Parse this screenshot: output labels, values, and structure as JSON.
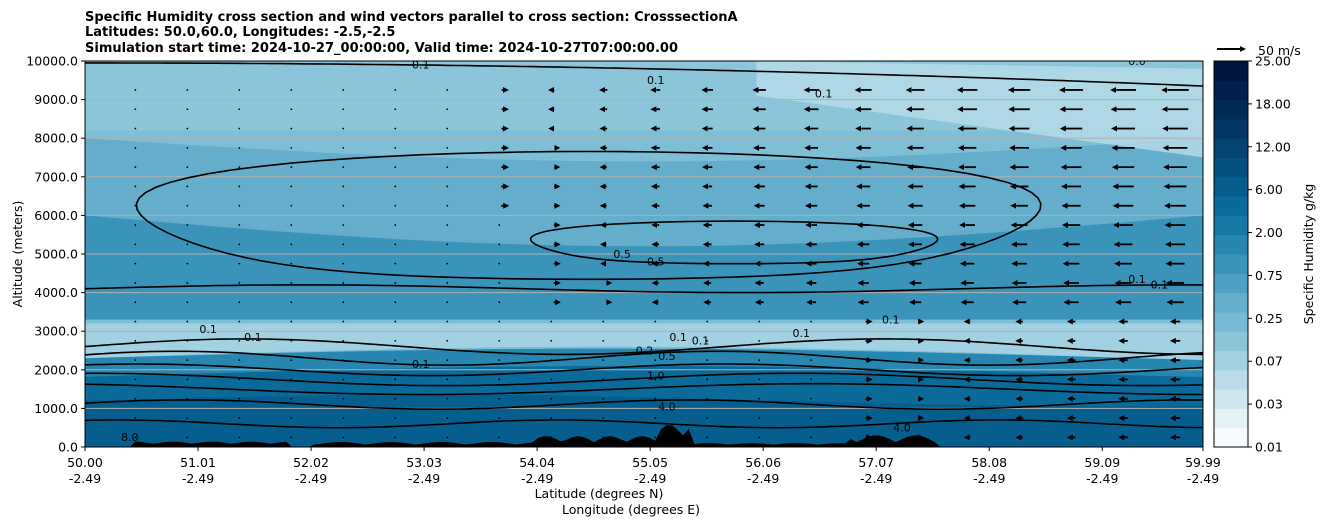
{
  "chart_data": {
    "type": "contour",
    "title_lines": [
      "Specific Humidity cross section and wind vectors parallel to cross section: CrosssectionA",
      "Latitudes: 50.0,60.0, Longitudes: -2.5,-2.5",
      "Simulation start time: 2024-10-27_00:00:00, Valid time: 2024-10-27T07:00:00.00"
    ],
    "xlabel_lat": "Latitude (degrees N)",
    "xlabel_lon": "Longitude (degrees E)",
    "ylabel": "Altitude (meters)",
    "xlim": [
      50.0,
      59.99
    ],
    "ylim": [
      0,
      10000
    ],
    "x_ticks": [
      {
        "lat": "50.00",
        "lon": "-2.49"
      },
      {
        "lat": "51.01",
        "lon": "-2.49"
      },
      {
        "lat": "52.02",
        "lon": "-2.49"
      },
      {
        "lat": "53.03",
        "lon": "-2.49"
      },
      {
        "lat": "54.04",
        "lon": "-2.49"
      },
      {
        "lat": "55.05",
        "lon": "-2.49"
      },
      {
        "lat": "56.06",
        "lon": "-2.49"
      },
      {
        "lat": "57.07",
        "lon": "-2.49"
      },
      {
        "lat": "58.08",
        "lon": "-2.49"
      },
      {
        "lat": "59.09",
        "lon": "-2.49"
      },
      {
        "lat": "59.99",
        "lon": "-2.49"
      }
    ],
    "y_ticks": [
      "0.0",
      "1000.0",
      "2000.0",
      "3000.0",
      "4000.0",
      "5000.0",
      "6000.0",
      "7000.0",
      "8000.0",
      "9000.0",
      "10000.0"
    ],
    "grid_horizontal": true,
    "colorbar": {
      "label": "Specific Humidity g/kg",
      "tick_labels": [
        "0.01",
        "0.03",
        "0.07",
        "0.25",
        "0.75",
        "2.00",
        "6.00",
        "12.00",
        "18.00",
        "25.00"
      ],
      "colors": [
        "#f7fbfd",
        "#e4f1f6",
        "#cde6ef",
        "#b8dce8",
        "#a2d1e1",
        "#8cc5da",
        "#78bad3",
        "#64adcb",
        "#4fa0c2",
        "#3a93b9",
        "#2787b1",
        "#1679a7",
        "#0a6b9b",
        "#055e8e",
        "#045180",
        "#034473",
        "#023765",
        "#012a57",
        "#011f4b",
        "#001440"
      ]
    },
    "quiver_key": {
      "label": "50 m/s"
    },
    "contour_labels": [
      {
        "text": "0.1",
        "x": 53.0,
        "y": 9800
      },
      {
        "text": "0.1",
        "x": 55.1,
        "y": 9400
      },
      {
        "text": "0.1",
        "x": 56.6,
        "y": 9050
      },
      {
        "text": "0.0",
        "x": 59.4,
        "y": 9900
      },
      {
        "text": "0.5",
        "x": 54.8,
        "y": 4900
      },
      {
        "text": "0.5",
        "x": 55.1,
        "y": 4700
      },
      {
        "text": "0.1",
        "x": 59.4,
        "y": 4250
      },
      {
        "text": "0.1",
        "x": 59.6,
        "y": 4100
      },
      {
        "text": "0.1",
        "x": 57.2,
        "y": 3200
      },
      {
        "text": "0.1",
        "x": 56.4,
        "y": 2850
      },
      {
        "text": "0.1",
        "x": 51.1,
        "y": 2950
      },
      {
        "text": "0.1",
        "x": 51.5,
        "y": 2750
      },
      {
        "text": "0.1",
        "x": 55.3,
        "y": 2750
      },
      {
        "text": "0.1",
        "x": 55.5,
        "y": 2650
      },
      {
        "text": "0.1",
        "x": 53.0,
        "y": 2050
      },
      {
        "text": "0.2",
        "x": 55.0,
        "y": 2400
      },
      {
        "text": "0.5",
        "x": 55.2,
        "y": 2250
      },
      {
        "text": "1.0",
        "x": 55.1,
        "y": 1750
      },
      {
        "text": "4.0",
        "x": 55.2,
        "y": 950
      },
      {
        "text": "4.0",
        "x": 57.3,
        "y": 400
      },
      {
        "text": "8.0",
        "x": 50.4,
        "y": 150
      }
    ]
  }
}
